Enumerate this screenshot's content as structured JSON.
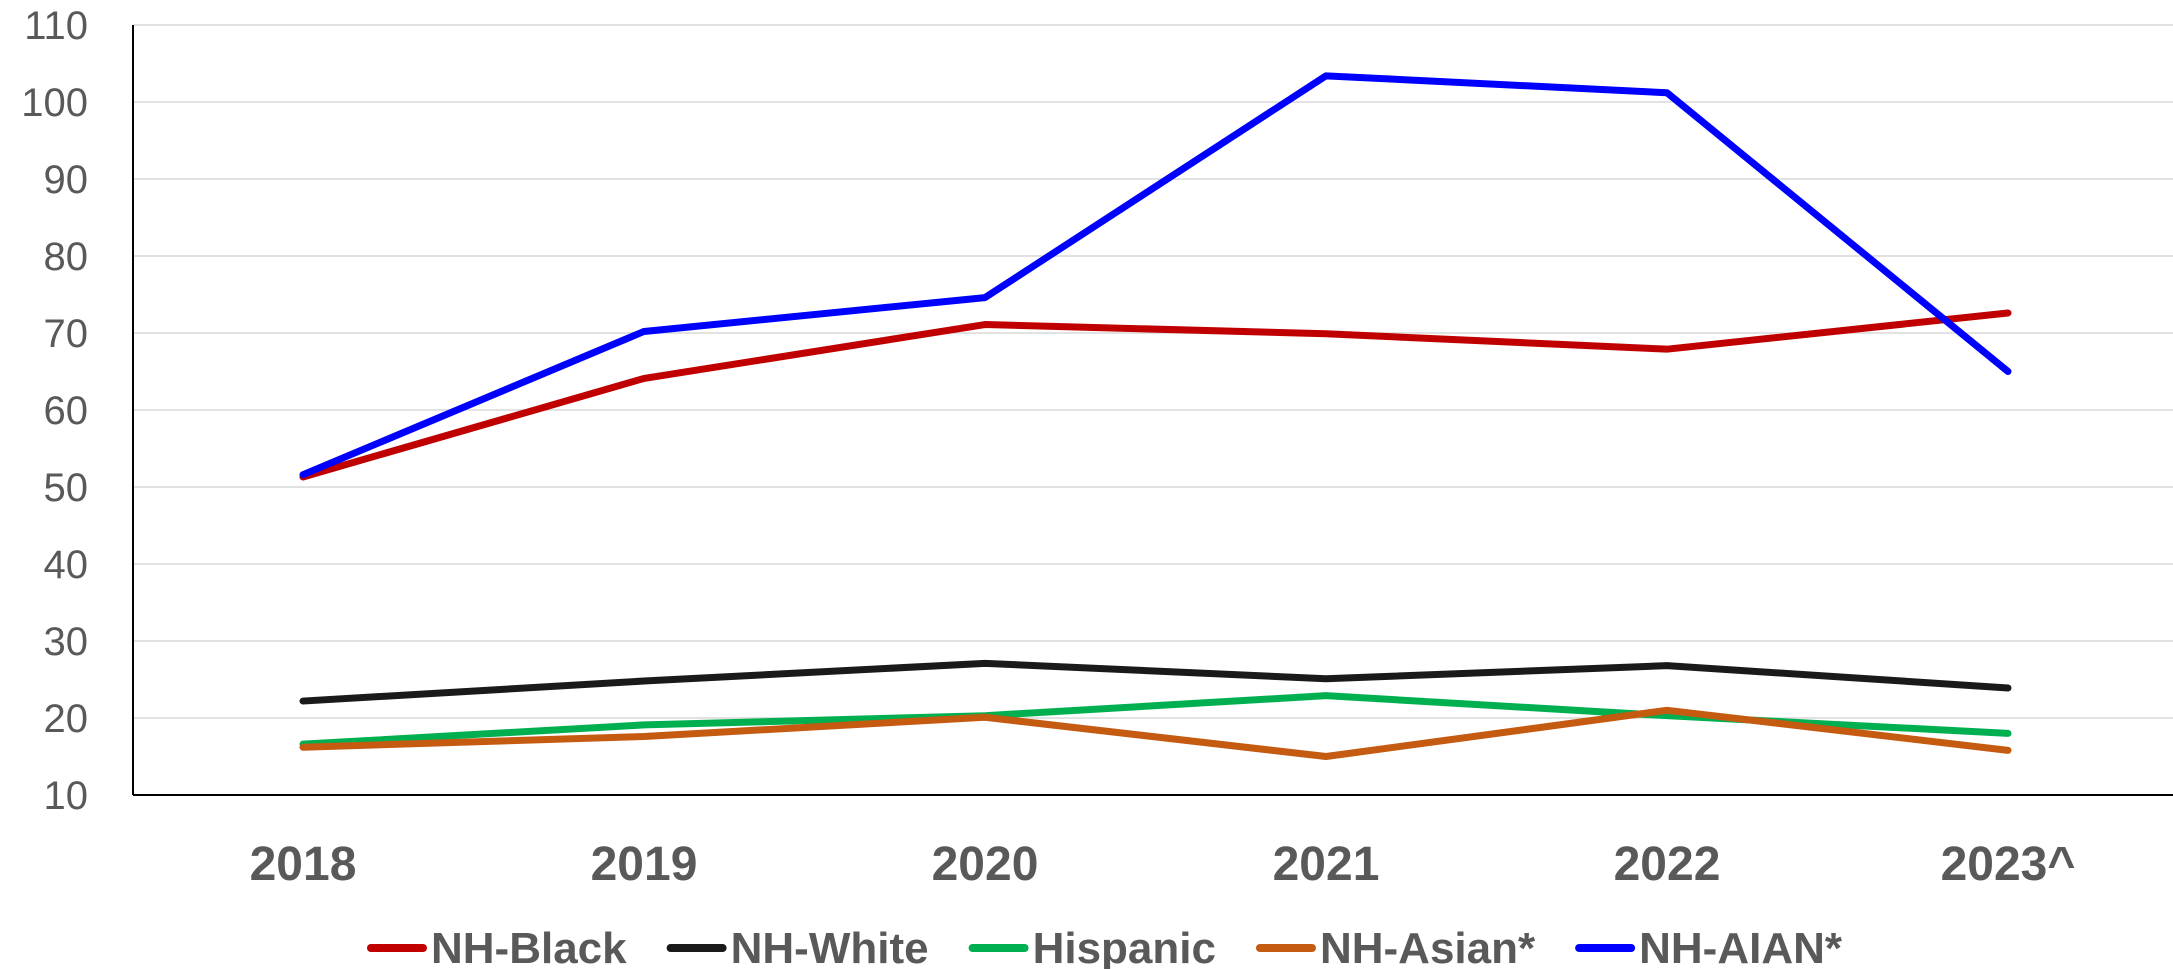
{
  "chart_data": {
    "type": "line",
    "title": "",
    "xlabel": "",
    "ylabel": "",
    "categories": [
      "2018",
      "2019",
      "2020",
      "2021",
      "2022",
      "2023^"
    ],
    "ylim": [
      10,
      110
    ],
    "yticks": [
      10,
      20,
      30,
      40,
      50,
      60,
      70,
      80,
      90,
      100,
      110
    ],
    "grid": true,
    "legend_position": "bottom",
    "series": [
      {
        "name": "NH-Black",
        "color": "#c00000",
        "values": [
          51.3,
          64.1,
          71.1,
          69.9,
          67.9,
          72.6
        ]
      },
      {
        "name": "NH-White",
        "color": "#1a1a1a",
        "values": [
          22.2,
          24.8,
          27.1,
          25.1,
          26.8,
          23.9
        ]
      },
      {
        "name": "Hispanic",
        "color": "#00b050",
        "values": [
          16.6,
          19.1,
          20.3,
          22.9,
          20.3,
          18.0
        ]
      },
      {
        "name": "NH-Asian*",
        "color": "#c55a11",
        "values": [
          16.2,
          17.6,
          20.1,
          15.0,
          21.0,
          15.8
        ]
      },
      {
        "name": "NH-AIAN*",
        "color": "#0000ff",
        "values": [
          51.6,
          70.2,
          74.6,
          103.4,
          101.2,
          65.0
        ]
      }
    ]
  }
}
